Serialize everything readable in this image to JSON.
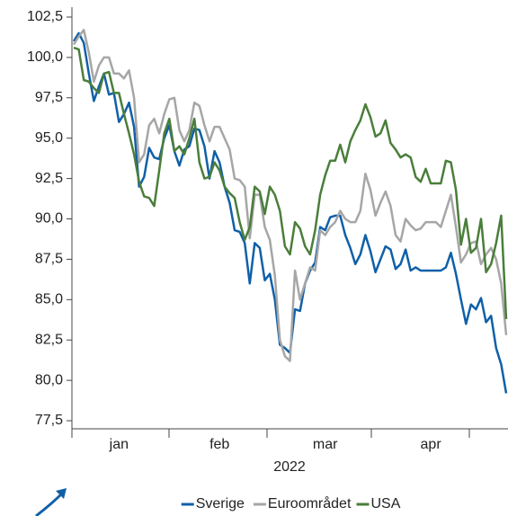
{
  "chart_data": {
    "type": "line",
    "xlabel": "2022",
    "categories": [
      null,
      null,
      null,
      null,
      null,
      null,
      null,
      null,
      null,
      "jan",
      null,
      null,
      null,
      null,
      null,
      null,
      null,
      null,
      null,
      null,
      null,
      null,
      null,
      null,
      null,
      null,
      null,
      null,
      null,
      "feb",
      null,
      null,
      null,
      null,
      null,
      null,
      null,
      null,
      null,
      null,
      null,
      null,
      null,
      null,
      null,
      null,
      null,
      null,
      null,
      null,
      "mar",
      null,
      null,
      null,
      null,
      null,
      null,
      null,
      null,
      null,
      null,
      null,
      null,
      null,
      null,
      null,
      null,
      null,
      null,
      null,
      null,
      "apr",
      null,
      null,
      null,
      null,
      null,
      null,
      null,
      null,
      null,
      null,
      null,
      null,
      null,
      null,
      null
    ],
    "series": [
      {
        "name": "Sverige",
        "color": "#1060a8",
        "values": [
          101.0,
          101.5,
          100.9,
          99.0,
          97.3,
          98.2,
          99.0,
          97.7,
          97.8,
          96.0,
          96.5,
          97.2,
          95.7,
          92.0,
          92.6,
          94.4,
          93.8,
          93.7,
          95.0,
          95.8,
          94.2,
          93.3,
          94.3,
          94.5,
          95.6,
          95.5,
          94.5,
          92.5,
          94.2,
          93.5,
          92.0,
          91.0,
          89.3,
          89.2,
          88.5,
          86.0,
          88.5,
          88.2,
          86.2,
          86.6,
          85.0,
          82.2,
          82.0,
          81.7,
          84.4,
          84.3,
          86.0,
          86.8,
          87.3,
          89.5,
          89.3,
          90.1,
          90.2,
          90.2,
          89.0,
          88.2,
          87.2,
          87.8,
          89.0,
          88.0,
          86.7,
          87.5,
          88.3,
          88.1,
          86.9,
          87.2,
          88.1,
          86.8,
          87.0,
          86.8,
          86.8,
          86.8,
          86.8,
          86.8,
          87.0,
          87.9,
          86.6,
          85.0,
          83.5,
          84.7,
          84.4,
          85.1,
          83.6,
          84.0,
          82.0,
          81.0,
          79.2
        ]
      },
      {
        "name": "Euroområdet",
        "color": "#a6a6a6",
        "values": [
          100.8,
          101.3,
          101.7,
          100.3,
          98.5,
          99.5,
          100.0,
          100.0,
          99.0,
          99.0,
          98.7,
          99.2,
          97.5,
          93.5,
          94.0,
          95.8,
          96.2,
          95.3,
          96.5,
          97.4,
          97.5,
          95.5,
          94.8,
          95.5,
          97.2,
          97.0,
          95.8,
          94.8,
          95.7,
          95.7,
          95.0,
          94.3,
          92.5,
          92.4,
          92.0,
          88.8,
          91.5,
          91.5,
          89.5,
          88.7,
          86.5,
          82.5,
          81.5,
          81.2,
          86.8,
          85.0,
          86.0,
          87.0,
          86.8,
          89.3,
          89.0,
          89.5,
          89.8,
          90.5,
          90.0,
          89.8,
          89.8,
          90.5,
          92.8,
          91.8,
          90.2,
          91.0,
          91.7,
          90.8,
          89.0,
          88.6,
          90.0,
          89.6,
          89.3,
          89.4,
          89.8,
          89.8,
          89.8,
          89.5,
          90.5,
          91.5,
          89.5,
          87.3,
          87.8,
          88.5,
          88.6,
          87.2,
          87.8,
          88.2,
          87.5,
          86.0,
          82.8
        ]
      },
      {
        "name": "USA",
        "color": "#4a7e3a",
        "values": [
          100.6,
          100.5,
          98.6,
          98.5,
          98.1,
          97.8,
          99.0,
          99.1,
          97.8,
          97.8,
          96.5,
          95.3,
          94.0,
          92.3,
          91.4,
          91.3,
          90.8,
          93.0,
          95.3,
          96.2,
          94.2,
          94.5,
          94.0,
          95.0,
          96.2,
          93.5,
          92.5,
          92.6,
          93.5,
          93.0,
          92.0,
          91.6,
          91.3,
          89.8,
          88.7,
          89.5,
          92.0,
          91.7,
          90.3,
          92.0,
          91.5,
          90.5,
          88.3,
          87.8,
          89.8,
          89.4,
          88.3,
          87.8,
          89.3,
          91.5,
          92.7,
          93.6,
          93.6,
          94.6,
          93.5,
          94.8,
          95.5,
          96.1,
          97.1,
          96.3,
          95.1,
          95.3,
          96.1,
          94.7,
          94.3,
          93.8,
          94.0,
          93.8,
          92.6,
          92.3,
          93.1,
          92.2,
          92.2,
          92.2,
          93.6,
          93.5,
          91.8,
          88.4,
          90.0,
          87.9,
          88.2,
          90.0,
          86.7,
          87.2,
          88.5,
          90.2,
          83.8
        ]
      }
    ],
    "ylim": [
      77,
      103
    ],
    "yticks": [
      {
        "value": 77.5,
        "label": "77,5"
      },
      {
        "value": 80,
        "label": "80,0"
      },
      {
        "value": 82.5,
        "label": "82,5"
      },
      {
        "value": 85,
        "label": "85,0"
      },
      {
        "value": 87.5,
        "label": "87,5"
      },
      {
        "value": 90,
        "label": "90,0"
      },
      {
        "value": 92.5,
        "label": "92,5"
      },
      {
        "value": 95,
        "label": "95,0"
      },
      {
        "value": 97.5,
        "label": "97,5"
      },
      {
        "value": 100,
        "label": "100,0"
      },
      {
        "value": 102.5,
        "label": "102,5"
      }
    ],
    "grid": false,
    "legend": "bottom"
  }
}
